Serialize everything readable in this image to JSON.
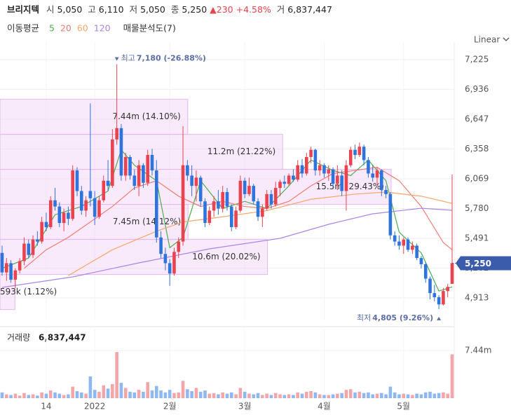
{
  "header": {
    "name": "브리지텍",
    "fields": [
      {
        "label": "시",
        "value": "5,050"
      },
      {
        "label": "고",
        "value": "6,110"
      },
      {
        "label": "저",
        "value": "5,050"
      },
      {
        "label": "종",
        "value": "5,250"
      }
    ],
    "change": "▲230",
    "change_rate": "+4.58%",
    "volume_label": "거",
    "volume": "6,837,447"
  },
  "chart_data": {
    "type": "candlestick",
    "scale": "Linear",
    "ma_title": "이동평균",
    "volume_title": "거래량",
    "categories": [
      null,
      null,
      null,
      null,
      null,
      null,
      null,
      null,
      null,
      null,
      "14",
      null,
      null,
      null,
      null,
      null,
      null,
      null,
      null,
      null,
      null,
      "2022",
      null,
      null,
      null,
      null,
      null,
      null,
      null,
      null,
      null,
      null,
      null,
      null,
      null,
      null,
      null,
      null,
      "2월",
      null,
      null,
      null,
      null,
      null,
      null,
      null,
      null,
      null,
      null,
      null,
      null,
      null,
      null,
      null,
      null,
      "3월",
      null,
      null,
      null,
      null,
      null,
      null,
      null,
      null,
      null,
      null,
      null,
      null,
      null,
      null,
      null,
      null,
      null,
      "4월",
      null,
      null,
      null,
      null,
      null,
      null,
      null,
      null,
      null,
      null,
      null,
      null,
      null,
      null,
      null,
      null,
      null,
      "5월",
      null,
      null,
      null,
      null,
      null,
      null,
      null,
      null,
      null,
      null,
      null
    ],
    "open": [
      5350,
      5160,
      5250,
      5090,
      5180,
      5270,
      5440,
      5330,
      5480,
      5460,
      5650,
      5600,
      5860,
      5800,
      5640,
      5740,
      5680,
      6150,
      5950,
      5760,
      5950,
      5880,
      5700,
      5860,
      6050,
      6000,
      6450,
      6560,
      6100,
      6280,
      6100,
      6000,
      6200,
      6030,
      6300,
      6150,
      5500,
      5340,
      5250,
      5150,
      5360,
      5460,
      6200,
      6100,
      6000,
      6080,
      5850,
      5640,
      5760,
      5850,
      5780,
      5940,
      5800,
      5600,
      5760,
      6050,
      5920,
      6000,
      5850,
      5700,
      5780,
      5920,
      5820,
      5980,
      6040,
      6020,
      6100,
      6060,
      6200,
      6120,
      6280,
      6350,
      6150,
      6200,
      6120,
      6160,
      6020,
      6100,
      5950,
      6200,
      6350,
      6300,
      6380,
      6250,
      6120,
      6080,
      6150,
      5960,
      5920,
      5520,
      5460,
      5420,
      5480,
      5380,
      5420,
      5300,
      5240,
      5100,
      4960,
      4920,
      4850,
      4980,
      5050
    ],
    "high": [
      5420,
      5300,
      5280,
      5200,
      5300,
      5500,
      5480,
      5520,
      5560,
      5700,
      5740,
      5900,
      5980,
      5840,
      5780,
      5800,
      6200,
      6180,
      6000,
      5900,
      6800,
      5950,
      5900,
      6100,
      6250,
      6550,
      7180,
      6600,
      6320,
      6300,
      6160,
      6250,
      6220,
      6350,
      6360,
      6250,
      5560,
      5400,
      5290,
      5400,
      5500,
      6580,
      6250,
      6200,
      6150,
      6100,
      5880,
      5800,
      5900,
      5960,
      6000,
      5980,
      5820,
      5800,
      6100,
      6080,
      6080,
      6020,
      5880,
      5820,
      5960,
      5960,
      6040,
      6060,
      6100,
      6120,
      6160,
      6250,
      6260,
      6320,
      6380,
      6360,
      6250,
      6220,
      6200,
      6180,
      6200,
      6150,
      6250,
      6380,
      6400,
      6420,
      6400,
      6280,
      6200,
      6180,
      6160,
      6000,
      5940,
      5560,
      5520,
      5500,
      5500,
      5460,
      5440,
      5320,
      5260,
      5120,
      5040,
      4940,
      5010,
      5050,
      6110
    ],
    "low": [
      5130,
      5080,
      5060,
      5010,
      5150,
      5230,
      5300,
      5300,
      5420,
      5440,
      5560,
      5580,
      5760,
      5600,
      5560,
      5620,
      5660,
      5900,
      5720,
      5700,
      5800,
      5620,
      5680,
      5840,
      5950,
      5980,
      6400,
      6050,
      6050,
      6060,
      5960,
      5900,
      5980,
      6000,
      6100,
      5450,
      5300,
      5180,
      5030,
      5130,
      5300,
      5420,
      6050,
      5900,
      5850,
      5800,
      5600,
      5620,
      5700,
      5720,
      5740,
      5760,
      5560,
      5580,
      5740,
      5880,
      5900,
      5820,
      5660,
      5600,
      5760,
      5780,
      5800,
      5900,
      5980,
      6000,
      6040,
      6040,
      6080,
      6100,
      6220,
      6100,
      6100,
      6080,
      6050,
      5980,
      5960,
      5900,
      5760,
      6180,
      6260,
      6280,
      6200,
      6080,
      6040,
      6000,
      5900,
      5880,
      5480,
      5420,
      5380,
      5340,
      5360,
      5340,
      5280,
      5200,
      5060,
      4900,
      4880,
      4805,
      4840,
      4920,
      5050
    ],
    "close": [
      5160,
      5250,
      5090,
      5180,
      5270,
      5440,
      5330,
      5480,
      5460,
      5650,
      5600,
      5860,
      5800,
      5640,
      5740,
      5680,
      6150,
      5950,
      5760,
      5860,
      5880,
      5700,
      5860,
      6050,
      6000,
      6450,
      6560,
      6100,
      6280,
      6100,
      6000,
      6200,
      6030,
      6300,
      6150,
      5500,
      5340,
      5250,
      5150,
      5360,
      5460,
      6200,
      6100,
      6000,
      6080,
      5850,
      5640,
      5760,
      5850,
      5780,
      5940,
      5800,
      5600,
      5760,
      6050,
      5920,
      6000,
      5850,
      5700,
      5780,
      5920,
      5820,
      5980,
      6040,
      6020,
      6100,
      6060,
      6200,
      6120,
      6280,
      6350,
      6150,
      6200,
      6120,
      6160,
      6020,
      6100,
      5950,
      6200,
      6350,
      6300,
      6380,
      6250,
      6120,
      6080,
      6150,
      5960,
      5920,
      5520,
      5460,
      5420,
      5480,
      5380,
      5420,
      5300,
      5240,
      5100,
      4960,
      4920,
      4850,
      4980,
      5020,
      5250
    ],
    "volume": [
      900000,
      600000,
      500000,
      700000,
      400000,
      800000,
      500000,
      600000,
      400000,
      900000,
      700000,
      1200000,
      900000,
      700000,
      500000,
      600000,
      1800000,
      1100000,
      900000,
      700000,
      3400000,
      1300000,
      1000000,
      2000000,
      1500000,
      2200000,
      7200000,
      2400000,
      1600000,
      1000000,
      900000,
      1300000,
      1000000,
      2500000,
      1200000,
      1900000,
      1200000,
      900000,
      1300000,
      800000,
      900000,
      2700000,
      1400000,
      1100000,
      1600000,
      1000000,
      1200000,
      700000,
      800000,
      600000,
      900000,
      700000,
      900000,
      600000,
      1600000,
      1000000,
      700000,
      600000,
      800000,
      500000,
      700000,
      500000,
      800000,
      600000,
      500000,
      600000,
      500000,
      900000,
      700000,
      1000000,
      1100000,
      900000,
      600000,
      500000,
      500000,
      600000,
      700000,
      800000,
      1300000,
      1400000,
      900000,
      1000000,
      800000,
      900000,
      600000,
      700000,
      800000,
      600000,
      1800000,
      900000,
      600000,
      700000,
      600000,
      500000,
      700000,
      600000,
      900000,
      1000000,
      700000,
      800000,
      900000,
      700000,
      6837447
    ],
    "up_color": "#e8434f",
    "down_color": "#2f73dc",
    "up_volume_color": "#f3a6aa",
    "down_volume_color": "#90b8f0",
    "ylim": [
      4709,
      7395
    ],
    "yticks": [
      {
        "value": 7225,
        "label": "7,225"
      },
      {
        "value": 6936,
        "label": "6,936"
      },
      {
        "value": 6647,
        "label": "6,647"
      },
      {
        "value": 6358,
        "label": "6,358"
      },
      {
        "value": 6069,
        "label": "6,069"
      },
      {
        "value": 5780,
        "label": "5,780"
      },
      {
        "value": 5491,
        "label": "5,491"
      },
      {
        "value": 5202,
        "label": "5,202"
      },
      {
        "value": 4913,
        "label": "4,913"
      }
    ],
    "volume_ylim": [
      0,
      10720000
    ],
    "volume_yticks": [
      {
        "value": 7440000,
        "label": "7.44m"
      }
    ],
    "grid": true,
    "moving_averages": [
      {
        "name": "5",
        "color": "#4cae4c",
        "x": [
          0,
          6,
          12,
          18,
          24,
          27,
          30,
          35,
          38,
          41,
          45,
          50,
          55,
          60,
          65,
          70,
          75,
          79,
          83,
          87,
          90,
          95,
          99,
          102
        ],
        "values": [
          5200,
          5300,
          5720,
          5800,
          5950,
          6350,
          6200,
          6050,
          5400,
          5500,
          6050,
          5780,
          5850,
          5780,
          6000,
          6250,
          6150,
          6100,
          6250,
          6050,
          5550,
          5350,
          4980,
          5020
        ]
      },
      {
        "name": "20",
        "color": "#ef7b72",
        "x": [
          5,
          10,
          15,
          20,
          25,
          30,
          35,
          40,
          45,
          50,
          55,
          60,
          65,
          70,
          75,
          80,
          85,
          90,
          95,
          100,
          102
        ],
        "values": [
          5200,
          5380,
          5500,
          5650,
          5800,
          5980,
          6050,
          5900,
          5800,
          5850,
          5800,
          5780,
          5850,
          6000,
          6120,
          6150,
          6180,
          6050,
          5800,
          5450,
          5380
        ]
      },
      {
        "name": "60",
        "color": "#f5a66c",
        "x": [
          15,
          25,
          35,
          41,
          50,
          60,
          70,
          80,
          87,
          95,
          102
        ],
        "values": [
          5130,
          5380,
          5560,
          5650,
          5700,
          5760,
          5870,
          5920,
          5940,
          5900,
          5830
        ]
      },
      {
        "name": "120",
        "color": "#a885e6",
        "x": [
          0,
          16,
          31,
          47,
          63,
          74,
          84,
          95,
          102
        ],
        "values": [
          5015,
          5117,
          5253,
          5389,
          5491,
          5627,
          5729,
          5783,
          5763
        ]
      }
    ],
    "volume_profile": {
      "title": "매물분석도(7)",
      "highs": [
        6840,
        6500,
        6160,
        5820,
        5480,
        5140
      ],
      "lows": [
        6500,
        6160,
        5820,
        5480,
        5140,
        4800
      ],
      "values": [
        7440000,
        11200000,
        15500000,
        7450000,
        10600000,
        593000
      ],
      "value_labels": [
        "7.44m (14.10%)",
        "11.2m (21.22%)",
        "15.5m (29.43%)",
        "7.45m (14.12%)",
        "10.6m (20.02%)",
        "593k (1.12%)"
      ],
      "xlim": [
        0,
        18000000
      ],
      "color": "#f3d9f7"
    },
    "high_annotation": {
      "label": "최고",
      "text": "7,180 (-26.88%)"
    },
    "low_annotation": {
      "label": "최저",
      "text": "4,805 (9.26%)"
    }
  }
}
